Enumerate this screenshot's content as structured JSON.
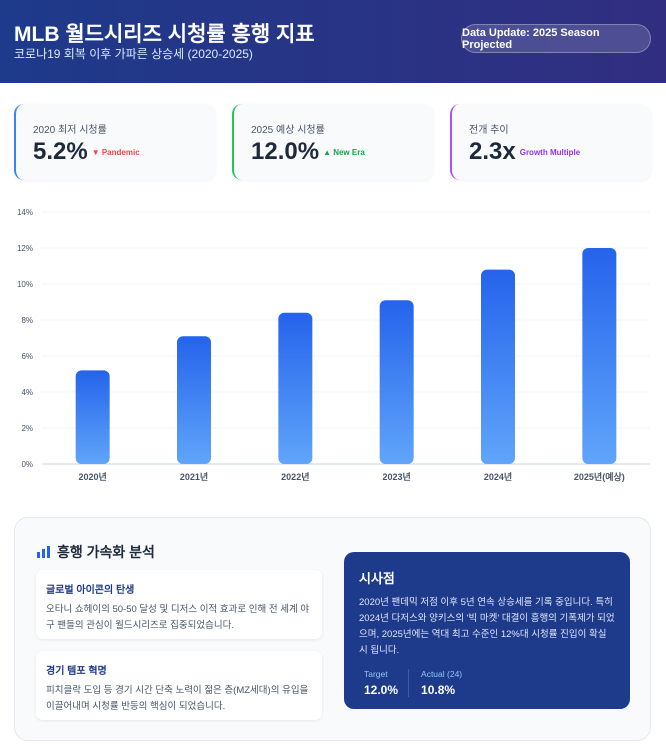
{
  "header": {
    "title": "MLB 월드시리즈 시청률 흥행 지표",
    "subtitle": "코로나19 회복 이후 가파른 상승세 (2020-2025)",
    "badge": "Data Update: 2025 Season Projected"
  },
  "cards": [
    {
      "label": "2020 최저 시청률",
      "value": "5.2%",
      "tag": "▼ Pandemic",
      "color": "#ef4444",
      "border": "#3b82f6"
    },
    {
      "label": "2025 예상 시청률",
      "value": "12.0%",
      "tag": "▲ New Era",
      "color": "#16a34a",
      "border": "#22c55e"
    },
    {
      "label": "전개 추이",
      "value": "2.3x",
      "tag": "Growth Multiple",
      "color": "#9333ea",
      "border": "#a855f7"
    }
  ],
  "chart_data": {
    "type": "bar",
    "categories": [
      "2020년",
      "2021년",
      "2022년",
      "2023년",
      "2024년",
      "2025년(예상)"
    ],
    "values": [
      5.2,
      7.1,
      8.4,
      9.1,
      10.8,
      12.0
    ],
    "ylim": [
      0,
      14
    ],
    "yticks": [
      "0%",
      "2%",
      "4%",
      "6%",
      "8%",
      "10%",
      "12%",
      "14%"
    ],
    "grid": true,
    "bar_gradient": [
      "#2563eb",
      "#60a5fa"
    ]
  },
  "analysis": {
    "title": "흥행 가속화 분석",
    "items": [
      {
        "title": "글로벌 아이콘의 탄생",
        "text": "오타니 쇼헤이의 50-50 달성 및 디저스 이적 효과로 인해 전 세계 야구 팬들의 관심이 월드시리즈로 집중되었습니다."
      },
      {
        "title": "경기 템포 혁명",
        "text": "피치클락 도입 등 경기 시간 단축 노력이 젊은 층(MZ세대)의 유입을 이끌어내며 시청률 반등의 핵심이 되었습니다."
      }
    ],
    "insight": {
      "title": "시사점",
      "text": "2020년 팬데믹 저점 이후 5년 연속 상승세를 기록 중입니다. 특히 2024년 다저스와 양키스의 '빅 마켓' 대결이 흥행의 기폭제가 되었으며, 2025년에는 역대 최고 수준인 12%대 시청률 진입이 확실시 됩니다.",
      "stats": [
        {
          "label": "Target",
          "value": "12.0%"
        },
        {
          "label": "Actual (24)",
          "value": "10.8%"
        }
      ]
    }
  }
}
